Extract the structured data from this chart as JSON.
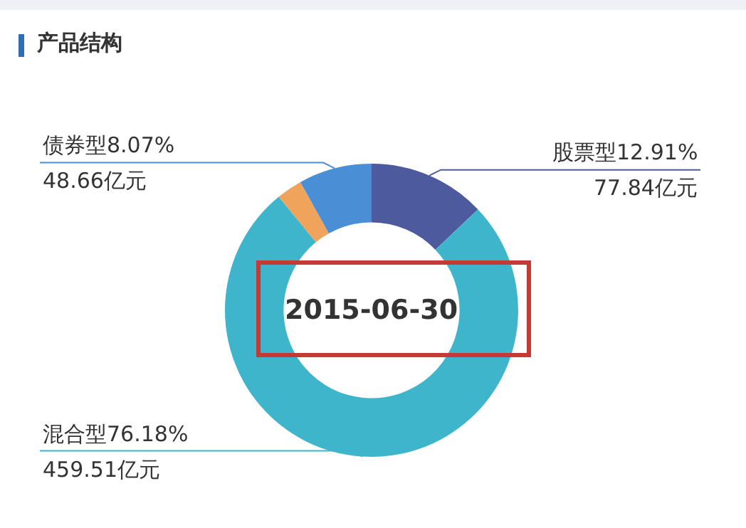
{
  "chart_data": {
    "type": "donut",
    "title": "产品结构",
    "categories": [
      "股票型",
      "混合型",
      null,
      "债券型"
    ],
    "values": [
      12.91,
      76.18,
      2.84,
      8.07
    ],
    "colors": [
      "#4e5a9e",
      "#3fb5cc",
      "#f0a35a",
      "#4a8fd6"
    ],
    "value_labels": [
      "12.91%\n77.84亿元",
      "76.18%\n459.51亿元",
      null,
      "8.07%\n48.66亿元"
    ],
    "annotations": [
      "2015-06-30"
    ],
    "legend": false
  }
}
